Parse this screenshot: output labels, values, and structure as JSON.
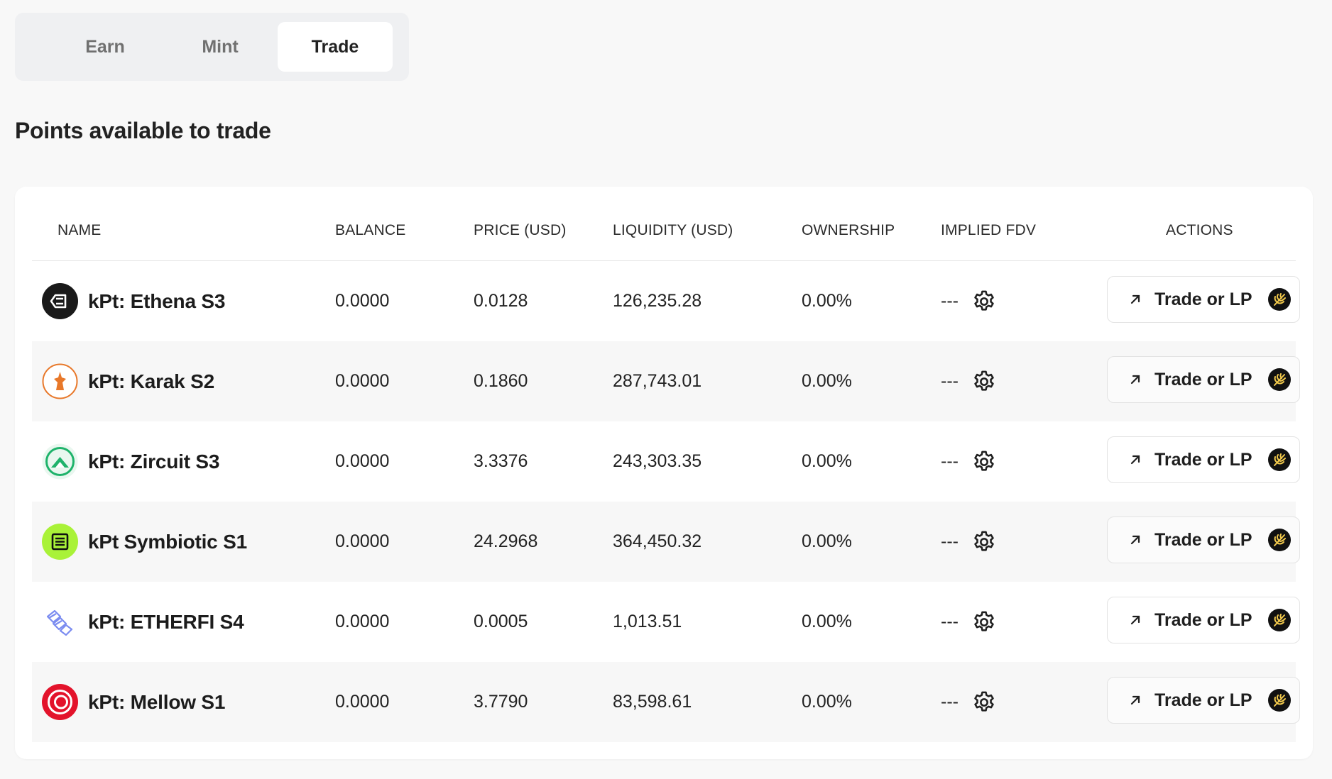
{
  "tabs": [
    {
      "label": "Earn",
      "active": false
    },
    {
      "label": "Mint",
      "active": false
    },
    {
      "label": "Trade",
      "active": true
    }
  ],
  "page_title": "Points available to trade",
  "table": {
    "headers": {
      "name": "NAME",
      "balance": "BALANCE",
      "price": "PRICE (USD)",
      "liquidity": "LIQUIDITY (USD)",
      "ownership": "OWNERSHIP",
      "implied_fdv": "IMPLIED FDV",
      "actions": "ACTIONS"
    },
    "rows": [
      {
        "name": "kPt: Ethena S3",
        "icon": "ethena-logo-icon",
        "balance": "0.0000",
        "price": "0.0128",
        "liquidity": "126,235.28",
        "ownership": "0.00%",
        "implied_fdv": "---",
        "action_label": "Trade or LP"
      },
      {
        "name": "kPt: Karak S2",
        "icon": "karak-logo-icon",
        "balance": "0.0000",
        "price": "0.1860",
        "liquidity": "287,743.01",
        "ownership": "0.00%",
        "implied_fdv": "---",
        "action_label": "Trade or LP"
      },
      {
        "name": "kPt: Zircuit S3",
        "icon": "zircuit-logo-icon",
        "balance": "0.0000",
        "price": "3.3376",
        "liquidity": "243,303.35",
        "ownership": "0.00%",
        "implied_fdv": "---",
        "action_label": "Trade or LP"
      },
      {
        "name": "kPt Symbiotic S1",
        "icon": "symbiotic-logo-icon",
        "balance": "0.0000",
        "price": "24.2968",
        "liquidity": "364,450.32",
        "ownership": "0.00%",
        "implied_fdv": "---",
        "action_label": "Trade or LP"
      },
      {
        "name": "kPt: ETHERFI S4",
        "icon": "etherfi-logo-icon",
        "balance": "0.0000",
        "price": "0.0005",
        "liquidity": "1,013.51",
        "ownership": "0.00%",
        "implied_fdv": "---",
        "action_label": "Trade or LP"
      },
      {
        "name": "kPt: Mellow S1",
        "icon": "mellow-logo-icon",
        "balance": "0.0000",
        "price": "3.7790",
        "liquidity": "83,598.61",
        "ownership": "0.00%",
        "implied_fdv": "---",
        "action_label": "Trade or LP"
      }
    ]
  },
  "icons": {
    "action_arrow": "arrow-up-right-icon",
    "action_brand": "pendle-logo-icon",
    "fdv_settings": "gear-icon"
  },
  "colors": {
    "ethena": "#1a1a1a",
    "karak": "#e8782a",
    "zircuit": "#1fb36b",
    "symbiotic": "#a9f238",
    "etherfi": "#7b8cf0",
    "mellow": "#e3132b",
    "pendle": "#f2c94c"
  }
}
